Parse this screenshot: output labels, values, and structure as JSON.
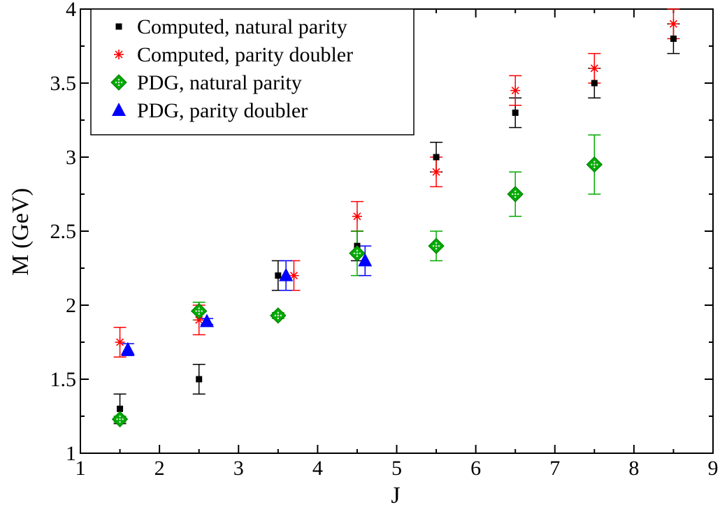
{
  "chart_data": {
    "type": "scatter",
    "title": "",
    "xlabel": "J",
    "ylabel": "M (GeV)",
    "xlim": [
      1,
      9
    ],
    "ylim": [
      1,
      4
    ],
    "x_ticks": [
      "1",
      "2",
      "3",
      "4",
      "5",
      "6",
      "7",
      "8",
      "9"
    ],
    "y_ticks": [
      "1",
      "1.5",
      "2",
      "2.5",
      "3",
      "3.5",
      "4"
    ],
    "grid": false,
    "legend_position": "top-left",
    "series": [
      {
        "name": "Computed, natural parity",
        "marker": "square",
        "color": "#000000",
        "points": [
          {
            "x": 1.5,
            "y": 1.3,
            "err": 0.1
          },
          {
            "x": 2.5,
            "y": 1.5,
            "err": 0.1
          },
          {
            "x": 3.5,
            "y": 2.2,
            "err": 0.1
          },
          {
            "x": 4.5,
            "y": 2.4,
            "err": 0.1
          },
          {
            "x": 5.5,
            "y": 3.0,
            "err": 0.1
          },
          {
            "x": 6.5,
            "y": 3.3,
            "err": 0.1
          },
          {
            "x": 7.5,
            "y": 3.5,
            "err": 0.1
          },
          {
            "x": 8.5,
            "y": 3.8,
            "err": 0.1
          }
        ]
      },
      {
        "name": "Computed, parity doubler",
        "marker": "star",
        "color": "#ff0000",
        "points": [
          {
            "x": 1.5,
            "y": 1.75,
            "err": 0.1
          },
          {
            "x": 2.5,
            "y": 1.9,
            "err": 0.1
          },
          {
            "x": 3.7,
            "y": 2.2,
            "err": 0.1
          },
          {
            "x": 4.5,
            "y": 2.6,
            "err": 0.1
          },
          {
            "x": 5.5,
            "y": 2.9,
            "err": 0.1
          },
          {
            "x": 6.5,
            "y": 3.45,
            "err": 0.1
          },
          {
            "x": 7.5,
            "y": 3.6,
            "err": 0.1
          },
          {
            "x": 8.5,
            "y": 3.9,
            "err": 0.1
          }
        ]
      },
      {
        "name": "PDG, natural parity",
        "marker": "diamond",
        "color": "#00aa00",
        "points": [
          {
            "x": 1.5,
            "y": 1.23,
            "err": 0.02
          },
          {
            "x": 2.5,
            "y": 1.96,
            "err": 0.06
          },
          {
            "x": 3.5,
            "y": 1.93,
            "err": 0.02
          },
          {
            "x": 4.5,
            "y": 2.35,
            "err": 0.15
          },
          {
            "x": 5.5,
            "y": 2.4,
            "err": 0.1
          },
          {
            "x": 6.5,
            "y": 2.75,
            "err": 0.15
          },
          {
            "x": 7.5,
            "y": 2.95,
            "err": 0.2
          }
        ]
      },
      {
        "name": "PDG, parity doubler",
        "marker": "triangle",
        "color": "#0000ff",
        "points": [
          {
            "x": 1.6,
            "y": 1.7,
            "err": 0.04
          },
          {
            "x": 2.6,
            "y": 1.89,
            "err": 0.02
          },
          {
            "x": 3.6,
            "y": 2.2,
            "err": 0.1
          },
          {
            "x": 4.6,
            "y": 2.3,
            "err": 0.1
          }
        ]
      }
    ]
  }
}
